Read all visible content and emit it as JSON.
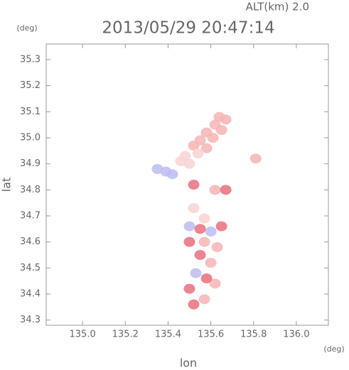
{
  "chart_data": {
    "type": "scatter",
    "title": "2013/05/29 20:47:14",
    "subtitle": "ALT(km) 2.0",
    "x_label": "lon",
    "x_unit": "(deg)",
    "y_label": "lat",
    "y_unit": "(deg)",
    "xlim": [
      134.83,
      136.15
    ],
    "ylim": [
      34.28,
      35.36
    ],
    "xticks": [
      {
        "value": 135,
        "label": "135.0"
      },
      135.2,
      135.4,
      135.6,
      135.8,
      {
        "value": 136,
        "label": "136.0"
      }
    ],
    "yticks": [
      34.3,
      34.4,
      34.5,
      34.6,
      34.7,
      34.8,
      34.9,
      {
        "value": 35,
        "label": "35.0"
      },
      35.1,
      35.2,
      35.3
    ],
    "series": [
      {
        "color": "#f7b4b4",
        "x": [
          135.64,
          135.67,
          135.62,
          135.65,
          135.58,
          135.61,
          135.55,
          135.58,
          135.52,
          135.62,
          135.57,
          135.63,
          135.6,
          135.62,
          135.57,
          135.81
        ],
        "values": [
          35.08,
          35.07,
          35.05,
          35.03,
          35.02,
          35.0,
          34.99,
          34.96,
          34.97,
          34.8,
          34.6,
          34.58,
          34.52,
          34.44,
          34.38,
          34.92
        ]
      },
      {
        "color": "#f9d2d2",
        "x": [
          135.54,
          135.48,
          135.5,
          135.46,
          135.52,
          135.57
        ],
        "values": [
          34.94,
          34.93,
          34.9,
          34.91,
          34.73,
          34.69
        ]
      },
      {
        "color": "#bcbcf2",
        "x": [
          135.35,
          135.39,
          135.42,
          135.5,
          135.6,
          135.53
        ],
        "values": [
          34.88,
          34.87,
          34.86,
          34.66,
          34.64,
          34.48
        ]
      },
      {
        "color": "#e8707c",
        "x": [
          135.52,
          135.67,
          135.55,
          135.65,
          135.5,
          135.55,
          135.58,
          135.5,
          135.52
        ],
        "values": [
          34.82,
          34.8,
          34.65,
          34.66,
          34.6,
          34.55,
          34.46,
          34.42,
          34.36
        ]
      }
    ]
  }
}
